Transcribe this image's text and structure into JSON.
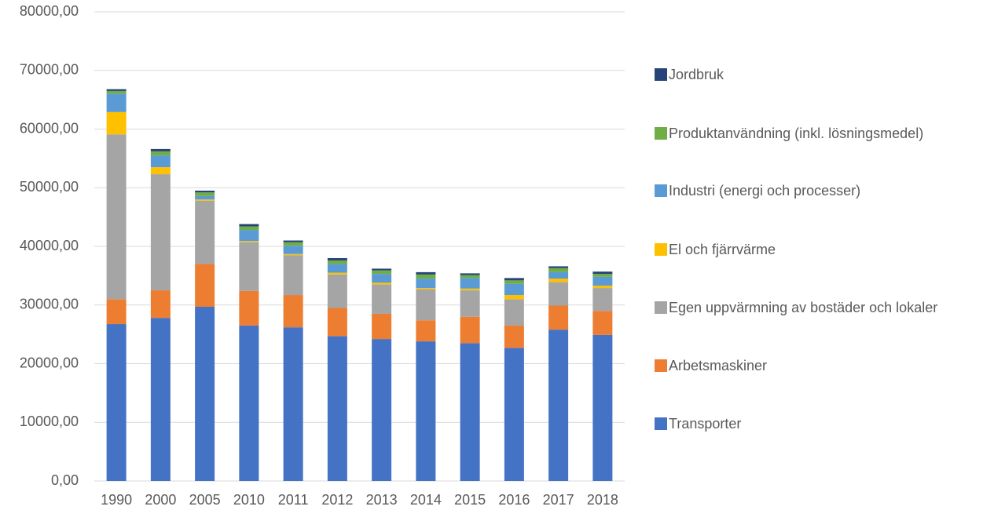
{
  "chart_data": {
    "type": "stacked_bar",
    "categories": [
      "1990",
      "2000",
      "2005",
      "2010",
      "2011",
      "2012",
      "2013",
      "2014",
      "2015",
      "2016",
      "2017",
      "2018"
    ],
    "series": [
      {
        "name": "Transporter",
        "color": "#4472c4",
        "values": [
          26750,
          27800,
          29700,
          26500,
          26200,
          24700,
          24200,
          23800,
          23500,
          22700,
          25800,
          24900
        ]
      },
      {
        "name": "Arbetsmaskiner",
        "color": "#ed7d31",
        "values": [
          4250,
          4700,
          7300,
          5900,
          5500,
          4800,
          4300,
          3600,
          4500,
          3800,
          4100,
          4100
        ]
      },
      {
        "name": "Egen uppvärmning av bostäder och lokaler",
        "color": "#a5a5a5",
        "values": [
          28100,
          19800,
          10800,
          8300,
          6800,
          5700,
          5000,
          5300,
          4500,
          4500,
          4000,
          3900
        ]
      },
      {
        "name": "El och fjärrvärme",
        "color": "#ffc000",
        "values": [
          3800,
          1200,
          200,
          200,
          200,
          300,
          300,
          200,
          300,
          700,
          600,
          400
        ]
      },
      {
        "name": "Industri (energi och processer)",
        "color": "#5b9bd5",
        "values": [
          3100,
          2000,
          600,
          1900,
          1400,
          1500,
          1500,
          1600,
          1800,
          1900,
          1100,
          1500
        ]
      },
      {
        "name": "Produktanvändning (inkl. lösningsmedel)",
        "color": "#70ad47",
        "values": [
          500,
          700,
          600,
          600,
          600,
          600,
          600,
          700,
          500,
          600,
          700,
          500
        ]
      },
      {
        "name": "Jordbruk",
        "color": "#264478",
        "values": [
          300,
          400,
          300,
          400,
          300,
          400,
          300,
          400,
          300,
          400,
          300,
          400
        ]
      }
    ],
    "ylim": [
      0,
      80000
    ],
    "yticks": [
      {
        "value": 0,
        "label": "0,00"
      },
      {
        "value": 10000,
        "label": "10000,00"
      },
      {
        "value": 20000,
        "label": "20000,00"
      },
      {
        "value": 30000,
        "label": "30000,00"
      },
      {
        "value": 40000,
        "label": "40000,00"
      },
      {
        "value": 50000,
        "label": "50000,00"
      },
      {
        "value": 60000,
        "label": "60000,00"
      },
      {
        "value": 70000,
        "label": "70000,00"
      },
      {
        "value": 80000,
        "label": "80000,00"
      }
    ],
    "grid": true,
    "legend": "right"
  }
}
